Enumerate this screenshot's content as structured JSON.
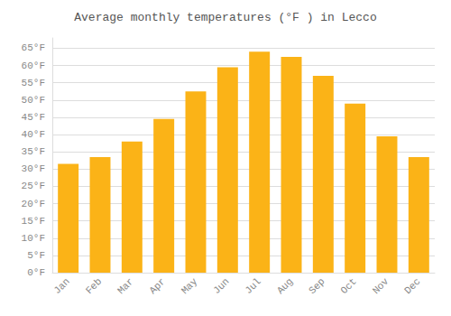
{
  "chart_data": {
    "type": "bar",
    "title": "Average monthly temperatures (°F ) in Lecco",
    "categories": [
      "Jan",
      "Feb",
      "Mar",
      "Apr",
      "May",
      "Jun",
      "Jul",
      "Aug",
      "Sep",
      "Oct",
      "Nov",
      "Dec"
    ],
    "values": [
      31.5,
      33.5,
      38.0,
      44.5,
      52.5,
      59.5,
      64.0,
      62.5,
      57.0,
      49.0,
      39.5,
      33.5
    ],
    "color": "#FBB317",
    "ylim": [
      0,
      68
    ],
    "yticks": [
      {
        "value": 0,
        "label": "0°F"
      },
      {
        "value": 5,
        "label": "5°F"
      },
      {
        "value": 10,
        "label": "10°F"
      },
      {
        "value": 15,
        "label": "15°F"
      },
      {
        "value": 20,
        "label": "20°F"
      },
      {
        "value": 25,
        "label": "25°F"
      },
      {
        "value": 30,
        "label": "30°F"
      },
      {
        "value": 35,
        "label": "35°F"
      },
      {
        "value": 40,
        "label": "40°F"
      },
      {
        "value": 45,
        "label": "45°F"
      },
      {
        "value": 50,
        "label": "50°F"
      },
      {
        "value": 55,
        "label": "55°F"
      },
      {
        "value": 60,
        "label": "60°F"
      },
      {
        "value": 65,
        "label": "65°F"
      }
    ],
    "grid": true
  }
}
